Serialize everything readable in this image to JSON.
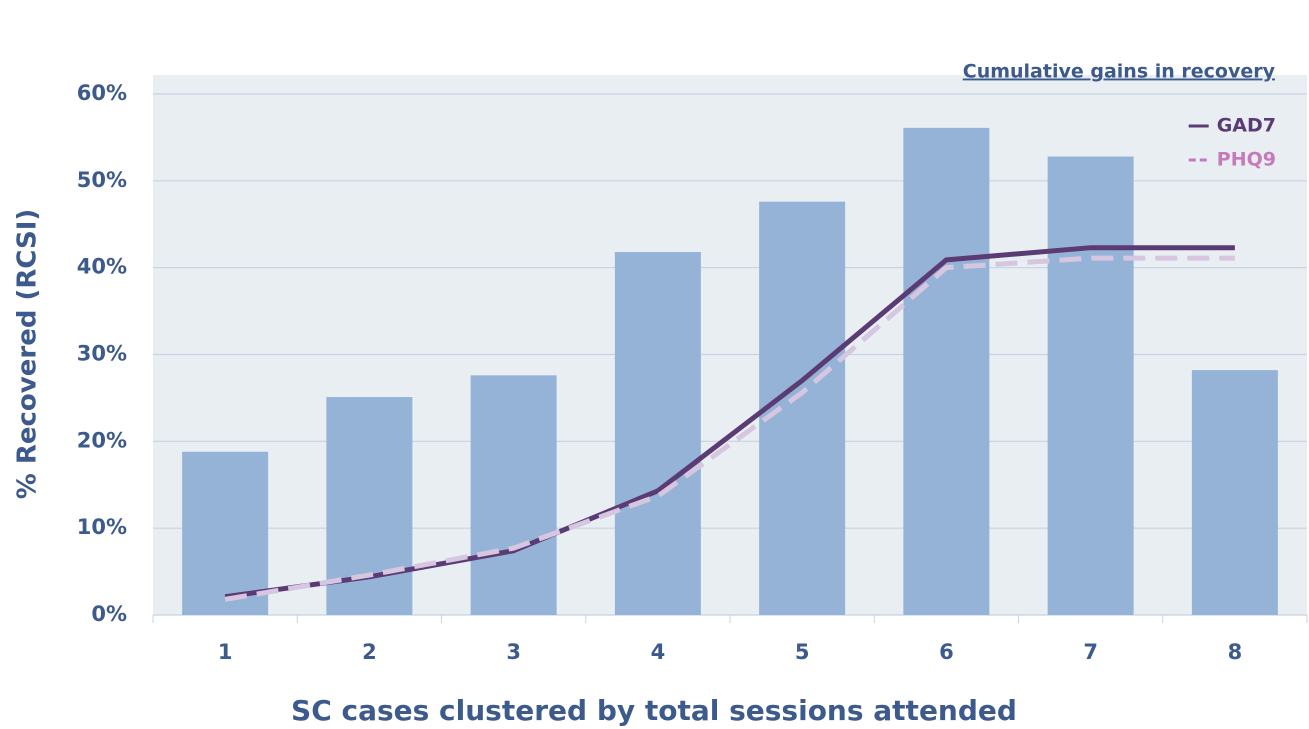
{
  "chart_data": {
    "type": "bar",
    "legend_title": "Cumulative gains in recovery",
    "x_label": "SC cases clustered by total sessions attended",
    "y_label": "% Recovered (RCSI)",
    "categories": [
      "1",
      "2",
      "3",
      "4",
      "5",
      "6",
      "7",
      "8"
    ],
    "series": [
      {
        "type": "bar",
        "color": "#95b3d7",
        "values": [
          18.8,
          25.1,
          27.6,
          41.8,
          47.6,
          56.1,
          52.8,
          28.2
        ]
      },
      {
        "type": "line",
        "name": "GAD7",
        "color": "#5b3b74",
        "label_color": "#5b3b74",
        "dashed": false,
        "values": [
          2.1,
          4.4,
          7.4,
          14.3,
          27.0,
          40.9,
          42.3,
          42.3
        ]
      },
      {
        "type": "line",
        "name": "PHQ9",
        "color": "#d6c6e0",
        "label_color": "#c57ab9",
        "dashed": true,
        "values": [
          1.8,
          4.6,
          7.7,
          13.7,
          25.6,
          40.0,
          41.1,
          41.1
        ]
      }
    ],
    "ylim": [
      0,
      60
    ],
    "yticks": [
      {
        "value": 0,
        "label": "0%"
      },
      {
        "value": 10,
        "label": "10%"
      },
      {
        "value": 20,
        "label": "20%"
      },
      {
        "value": 30,
        "label": "30%"
      },
      {
        "value": 40,
        "label": "40%"
      },
      {
        "value": 50,
        "label": "50%"
      },
      {
        "value": 60,
        "label": "60%"
      }
    ],
    "grid": true,
    "legend": "top-right"
  }
}
